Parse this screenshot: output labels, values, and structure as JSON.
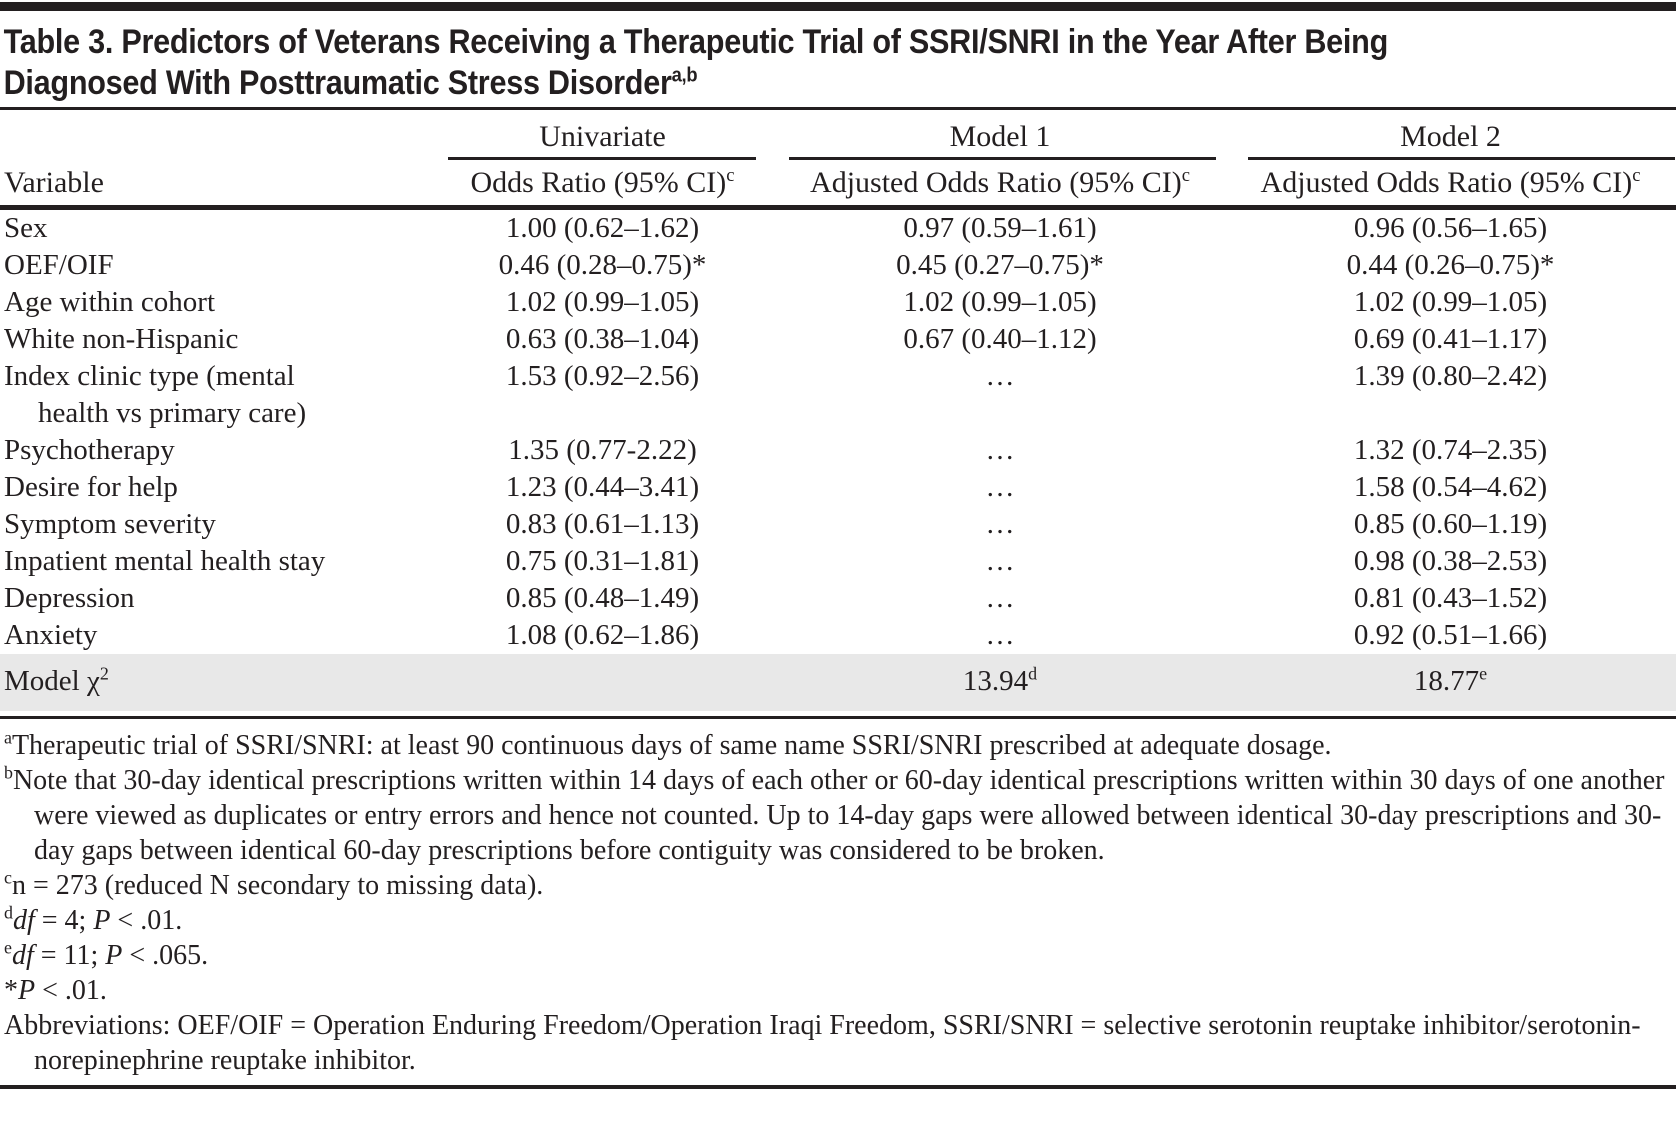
{
  "title": {
    "line1": "Table 3. Predictors of Veterans Receiving a Therapeutic Trial of SSRI/SNRI in the Year After Being",
    "line2": "Diagnosed With Posttraumatic Stress Disorder",
    "sup": "a,b"
  },
  "columns": {
    "variable": "Variable",
    "groups": [
      {
        "name": "Univariate",
        "sub": "Odds Ratio (95% CI)",
        "sup": "c"
      },
      {
        "name": "Model 1",
        "sub": "Adjusted Odds Ratio (95% CI)",
        "sup": "c"
      },
      {
        "name": "Model 2",
        "sub": "Adjusted Odds Ratio (95% CI)",
        "sup": "c"
      }
    ]
  },
  "rows": [
    {
      "variable": "Sex",
      "univariate": "1.00 (0.62–1.62)",
      "model1": "0.97 (0.59–1.61)",
      "model2": "0.96 (0.56–1.65)"
    },
    {
      "variable": "OEF/OIF",
      "univariate": "0.46 (0.28–0.75)*",
      "model1": "0.45 (0.27–0.75)*",
      "model2": "0.44 (0.26–0.75)*"
    },
    {
      "variable": "Age within cohort",
      "univariate": "1.02 (0.99–1.05)",
      "model1": "1.02 (0.99–1.05)",
      "model2": "1.02 (0.99–1.05)"
    },
    {
      "variable": "White non-Hispanic",
      "univariate": "0.63 (0.38–1.04)",
      "model1": "0.67 (0.40–1.12)",
      "model2": "0.69 (0.41–1.17)"
    },
    {
      "variable": "Index clinic type (mental",
      "variable_line2": "health vs primary care)",
      "univariate": "1.53 (0.92–2.56)",
      "model1": "…",
      "model2": "1.39 (0.80–2.42)"
    },
    {
      "variable": "Psychotherapy",
      "univariate": "1.35 (0.77-2.22)",
      "model1": "…",
      "model2": "1.32 (0.74–2.35)"
    },
    {
      "variable": "Desire for help",
      "univariate": "1.23 (0.44–3.41)",
      "model1": "…",
      "model2": "1.58 (0.54–4.62)"
    },
    {
      "variable": "Symptom severity",
      "univariate": "0.83 (0.61–1.13)",
      "model1": "…",
      "model2": "0.85 (0.60–1.19)"
    },
    {
      "variable": "Inpatient mental health stay",
      "univariate": "0.75 (0.31–1.81)",
      "model1": "…",
      "model2": "0.98 (0.38–2.53)"
    },
    {
      "variable": "Depression",
      "univariate": "0.85 (0.48–1.49)",
      "model1": "…",
      "model2": "0.81 (0.43–1.52)"
    },
    {
      "variable": "Anxiety",
      "univariate": "1.08 (0.62–1.86)",
      "model1": "…",
      "model2": "0.92 (0.51–1.66)"
    }
  ],
  "chi_row": {
    "label": "Model χ",
    "label_sup": "2",
    "model1": "13.94",
    "model1_sup": "d",
    "model2": "18.77",
    "model2_sup": "e"
  },
  "footnotes": {
    "a": {
      "marker": "a",
      "text": "Therapeutic trial of SSRI/SNRI: at least 90 continuous days of same name SSRI/SNRI prescribed at adequate dosage."
    },
    "b": {
      "marker": "b",
      "text": "Note that 30-day identical prescriptions written within 14 days of each other or 60-day identical prescriptions written within 30 days of one another were viewed as duplicates or entry errors and hence not counted. Up to 14-day gaps were allowed between identical 30-day prescriptions and 30-day gaps between identical 60-day prescriptions before contiguity was considered to be broken."
    },
    "c": {
      "marker": "c",
      "text": "n = 273 (reduced N secondary to missing data)."
    },
    "d": {
      "marker": "d",
      "italic1": "df",
      "text1": " = 4; ",
      "italic2": "P",
      "text2": " < .01."
    },
    "e": {
      "marker": "e",
      "italic1": "df",
      "text1": " = 11; ",
      "italic2": "P",
      "text2": " < .065."
    },
    "star": {
      "marker": "*",
      "italic1": "P",
      "text1": " < .01."
    },
    "abbreviations": {
      "text": "Abbreviations: OEF/OIF = Operation Enduring Freedom/Operation Iraqi Freedom, SSRI/SNRI = selective serotonin reuptake inhibitor/serotonin-norepinephrine reuptake inhibitor."
    }
  },
  "colors": {
    "text": "#231f20",
    "rule": "#231f20",
    "shaded_row": "#e8e8e8"
  }
}
